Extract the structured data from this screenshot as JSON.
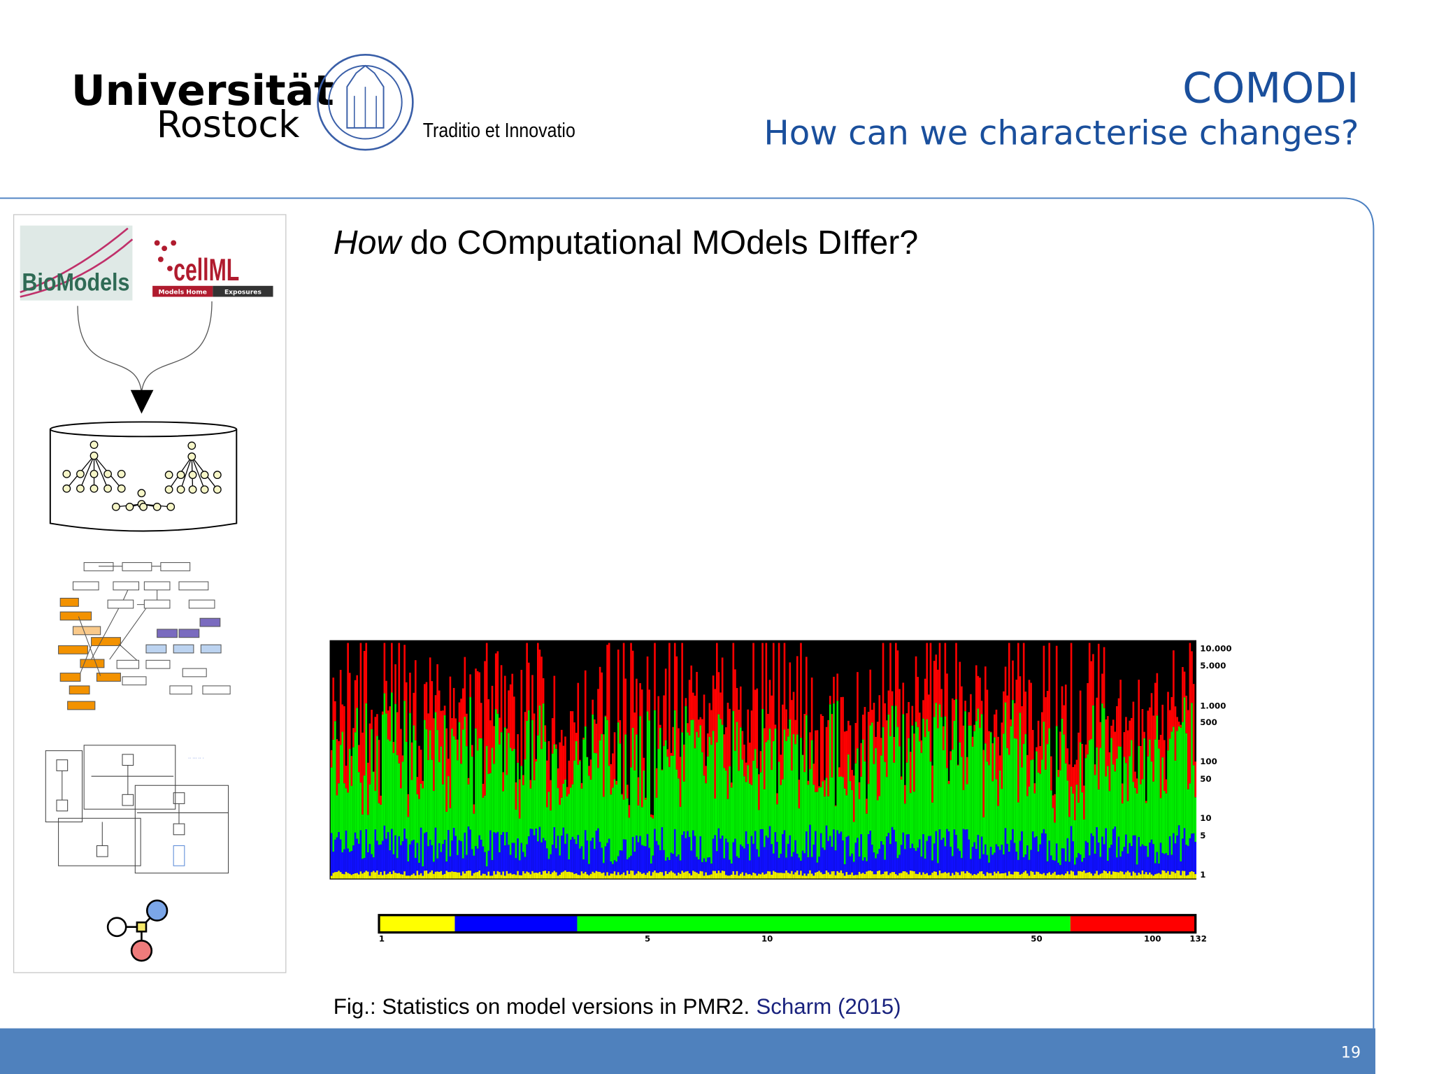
{
  "header": {
    "university": "Universität",
    "city": "Rostock",
    "motto": "Traditio et Innovatio",
    "project": "COMODI",
    "subtitle": "How can we characterise changes?"
  },
  "sidebar": {
    "biomodels_logo": "BioModels",
    "cellml_logo": "cellML",
    "cellml_tabs": [
      "Models Home",
      "Exposures"
    ]
  },
  "heading": {
    "emphasis": "How",
    "rest": "do COmputational MOdels DIffer?"
  },
  "figure": {
    "y_labels": [
      "10.000",
      "5.000",
      "1.000",
      "500",
      "100",
      "50",
      "10",
      "5",
      "1"
    ],
    "scale_labels": [
      "1",
      "5",
      "10",
      "50",
      "100",
      "132"
    ]
  },
  "caption": {
    "text": "Fig.: Statistics on model versions in PMR2.",
    "citation": "Scharm (2015)"
  },
  "footer": {
    "page_number": "19"
  }
}
